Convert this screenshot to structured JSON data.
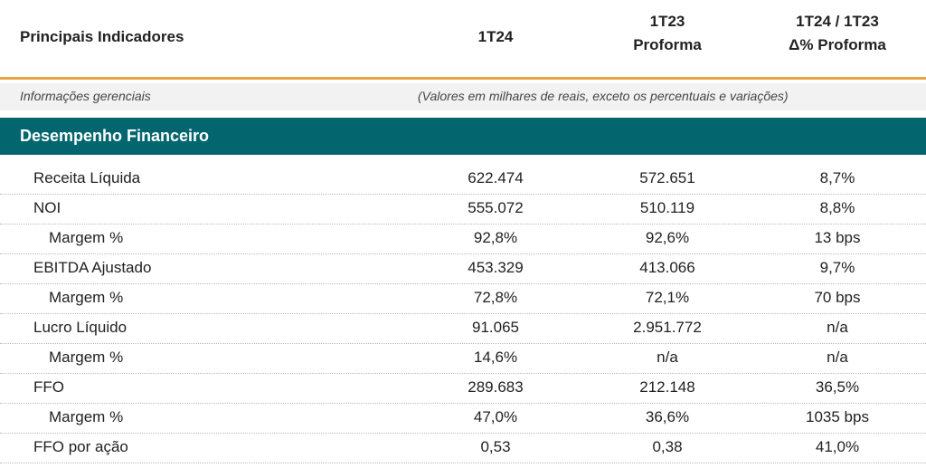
{
  "header": {
    "title": "Principais Indicadores",
    "col1": "1T24",
    "col2_line1": "1T23",
    "col2_line2": "Proforma",
    "col3_line1": "1T24 / 1T23",
    "col3_line2": "Δ% Proforma"
  },
  "info": {
    "left": "Informações gerenciais",
    "right": "(Valores em milhares de reais, exceto os percentuais e variações)"
  },
  "section": {
    "title": "Desempenho Financeiro"
  },
  "rows": [
    {
      "label": "Receita Líquida",
      "indent": 0,
      "v1": "622.474",
      "v2": "572.651",
      "v3": "8,7%"
    },
    {
      "label": "NOI",
      "indent": 0,
      "v1": "555.072",
      "v2": "510.119",
      "v3": "8,8%"
    },
    {
      "label": "Margem %",
      "indent": 1,
      "v1": "92,8%",
      "v2": "92,6%",
      "v3": "13 bps"
    },
    {
      "label": "EBITDA Ajustado",
      "indent": 0,
      "v1": "453.329",
      "v2": "413.066",
      "v3": "9,7%"
    },
    {
      "label": "Margem %",
      "indent": 1,
      "v1": "72,8%",
      "v2": "72,1%",
      "v3": "70 bps"
    },
    {
      "label": "Lucro Líquido",
      "indent": 0,
      "v1": "91.065",
      "v2": "2.951.772",
      "v3": "n/a"
    },
    {
      "label": "Margem %",
      "indent": 1,
      "v1": "14,6%",
      "v2": "n/a",
      "v3": "n/a"
    },
    {
      "label": "FFO",
      "indent": 0,
      "v1": "289.683",
      "v2": "212.148",
      "v3": "36,5%"
    },
    {
      "label": "Margem %",
      "indent": 1,
      "v1": "47,0%",
      "v2": "36,6%",
      "v3": "1035 bps"
    },
    {
      "label": "FFO por ação",
      "indent": 0,
      "v1": "0,53",
      "v2": "0,38",
      "v3": "41,0%"
    }
  ]
}
